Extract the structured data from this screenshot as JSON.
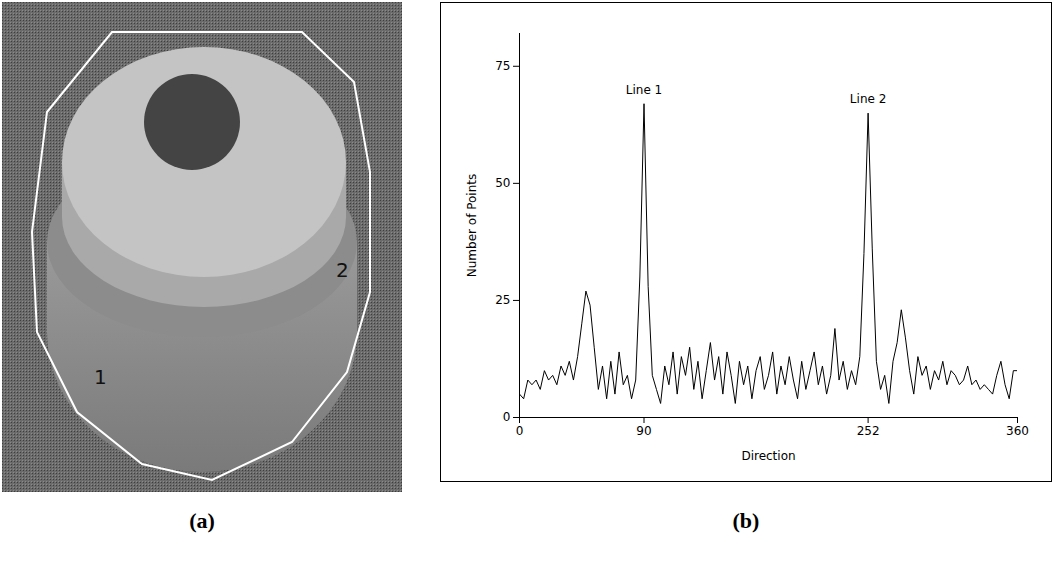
{
  "figure": {
    "panels": [
      {
        "label": "(a)",
        "markers": [
          "1",
          "2"
        ]
      },
      {
        "label": "(b)"
      }
    ]
  },
  "chart_data": {
    "type": "line",
    "x_label": "Direction",
    "y_label": "Number of Points",
    "color": "#000000",
    "xlim": [
      0,
      360
    ],
    "xticks": [
      0,
      90,
      252,
      360
    ],
    "ylim": [
      0,
      82
    ],
    "yticks": [
      0,
      25,
      50,
      75
    ],
    "annotations": [
      {
        "text": "Line 1",
        "x": 90,
        "y": 67
      },
      {
        "text": "Line 2",
        "x": 252,
        "y": 65
      }
    ],
    "x": [
      0,
      3,
      6,
      9,
      12,
      15,
      18,
      21,
      24,
      27,
      30,
      33,
      36,
      39,
      42,
      45,
      48,
      51,
      54,
      57,
      60,
      63,
      66,
      69,
      72,
      75,
      78,
      81,
      84,
      87,
      90,
      93,
      96,
      99,
      102,
      105,
      108,
      111,
      114,
      117,
      120,
      123,
      126,
      129,
      132,
      135,
      138,
      141,
      144,
      147,
      150,
      153,
      156,
      159,
      162,
      165,
      168,
      171,
      174,
      177,
      180,
      183,
      186,
      189,
      192,
      195,
      198,
      201,
      204,
      207,
      210,
      213,
      216,
      219,
      222,
      225,
      228,
      231,
      234,
      237,
      240,
      243,
      246,
      249,
      252,
      255,
      258,
      261,
      264,
      267,
      270,
      273,
      276,
      279,
      282,
      285,
      288,
      291,
      294,
      297,
      300,
      303,
      306,
      309,
      312,
      315,
      318,
      321,
      324,
      327,
      330,
      333,
      336,
      339,
      342,
      345,
      348,
      351,
      354,
      357,
      360
    ],
    "values": [
      5,
      4,
      8,
      7,
      8,
      6,
      10,
      8,
      9,
      7,
      11,
      9,
      12,
      8,
      13,
      20,
      27,
      24,
      15,
      6,
      11,
      4,
      12,
      5,
      14,
      7,
      9,
      4,
      8,
      30,
      67,
      28,
      9,
      6,
      3,
      11,
      7,
      14,
      5,
      13,
      9,
      15,
      6,
      12,
      4,
      10,
      16,
      8,
      13,
      5,
      14,
      9,
      3,
      12,
      7,
      11,
      4,
      10,
      13,
      6,
      9,
      14,
      5,
      11,
      7,
      13,
      8,
      4,
      12,
      6,
      10,
      14,
      7,
      11,
      5,
      9,
      19,
      8,
      12,
      6,
      10,
      7,
      13,
      35,
      65,
      36,
      12,
      6,
      9,
      3,
      12,
      16,
      23,
      17,
      10,
      5,
      13,
      9,
      11,
      6,
      10,
      8,
      12,
      7,
      10,
      9,
      7,
      8,
      11,
      7,
      8,
      6,
      7,
      6,
      5,
      9,
      12,
      7,
      4,
      10,
      10
    ]
  }
}
